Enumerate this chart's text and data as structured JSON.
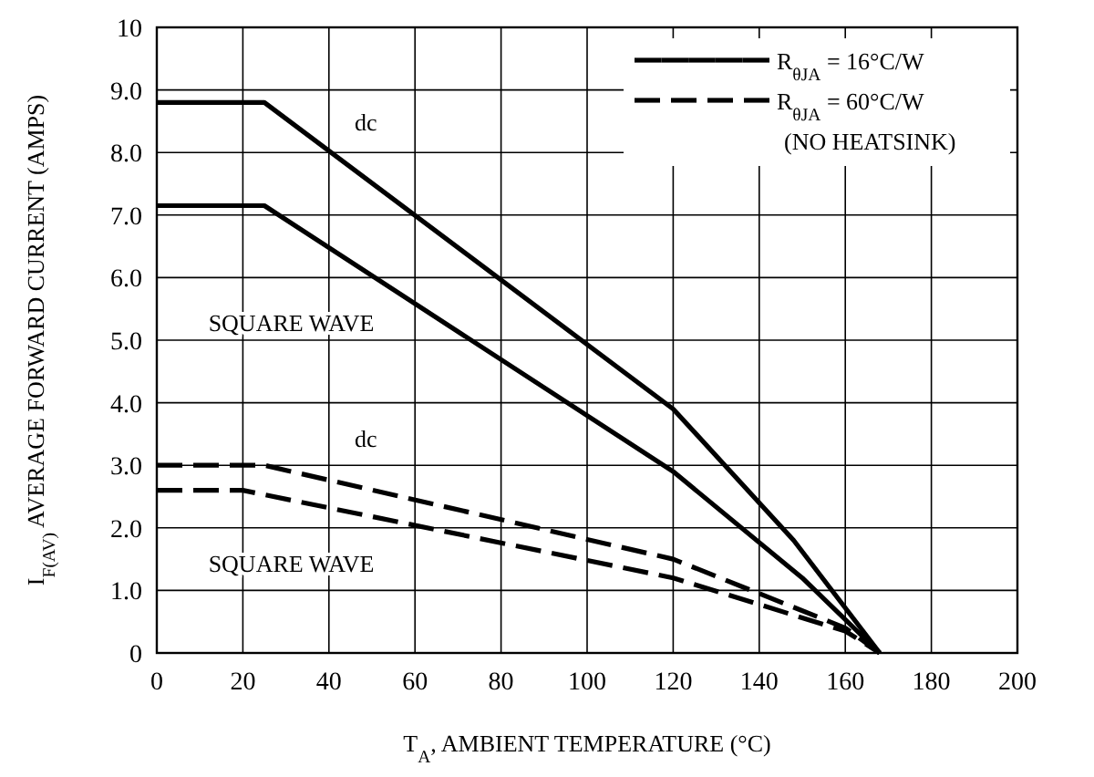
{
  "chart_data": {
    "type": "line",
    "xlabel": "T$_{A}$, AMBIENT TEMPERATURE (°C)",
    "ylabel": "I$_{F(AV)}$  AVERAGE FORWARD CURRENT (AMPS)",
    "xlim": [
      0,
      200
    ],
    "ylim": [
      0,
      10
    ],
    "xticks": [
      0,
      20,
      40,
      60,
      80,
      100,
      120,
      140,
      160,
      180,
      200
    ],
    "yticks": [
      0,
      {
        "value": 1,
        "label": "1.0"
      },
      {
        "value": 2,
        "label": "2.0"
      },
      {
        "value": 3,
        "label": "3.0"
      },
      {
        "value": 4,
        "label": "4.0"
      },
      {
        "value": 5,
        "label": "5.0"
      },
      {
        "value": 6,
        "label": "6.0"
      },
      {
        "value": 7,
        "label": "7.0"
      },
      {
        "value": 8,
        "label": "8.0"
      },
      {
        "value": 9,
        "label": "9.0"
      },
      10
    ],
    "grid": true,
    "legend": "top right",
    "marker": "none",
    "series": [
      {
        "name": "R$_{θJA}$ = 16°C/W",
        "color": "#000000",
        "line_style": "solid",
        "x": [
          0,
          25,
          120,
          148,
          168
        ],
        "values": [
          8.8,
          8.8,
          3.9,
          1.8,
          0
        ]
      },
      {
        "color": "#000000",
        "line_style": "solid",
        "x": [
          0,
          25,
          120,
          150,
          168
        ],
        "values": [
          7.15,
          7.15,
          2.9,
          1.2,
          0
        ]
      },
      {
        "name": "R$_{θJA}$ = 60°C/W",
        "color": "#000000",
        "line_style": "dashed",
        "x": [
          0,
          25,
          120,
          160,
          168
        ],
        "values": [
          3.0,
          3.0,
          1.5,
          0.4,
          0
        ]
      },
      {
        "color": "#000000",
        "line_style": "dashed",
        "x": [
          0,
          20,
          120,
          160,
          168
        ],
        "values": [
          2.6,
          2.6,
          1.2,
          0.35,
          0
        ]
      }
    ],
    "annotations": [
      "dc",
      "SQUARE WAVE",
      "dc",
      "SQUARE WAVE",
      "(NO HEATSINK)"
    ]
  }
}
